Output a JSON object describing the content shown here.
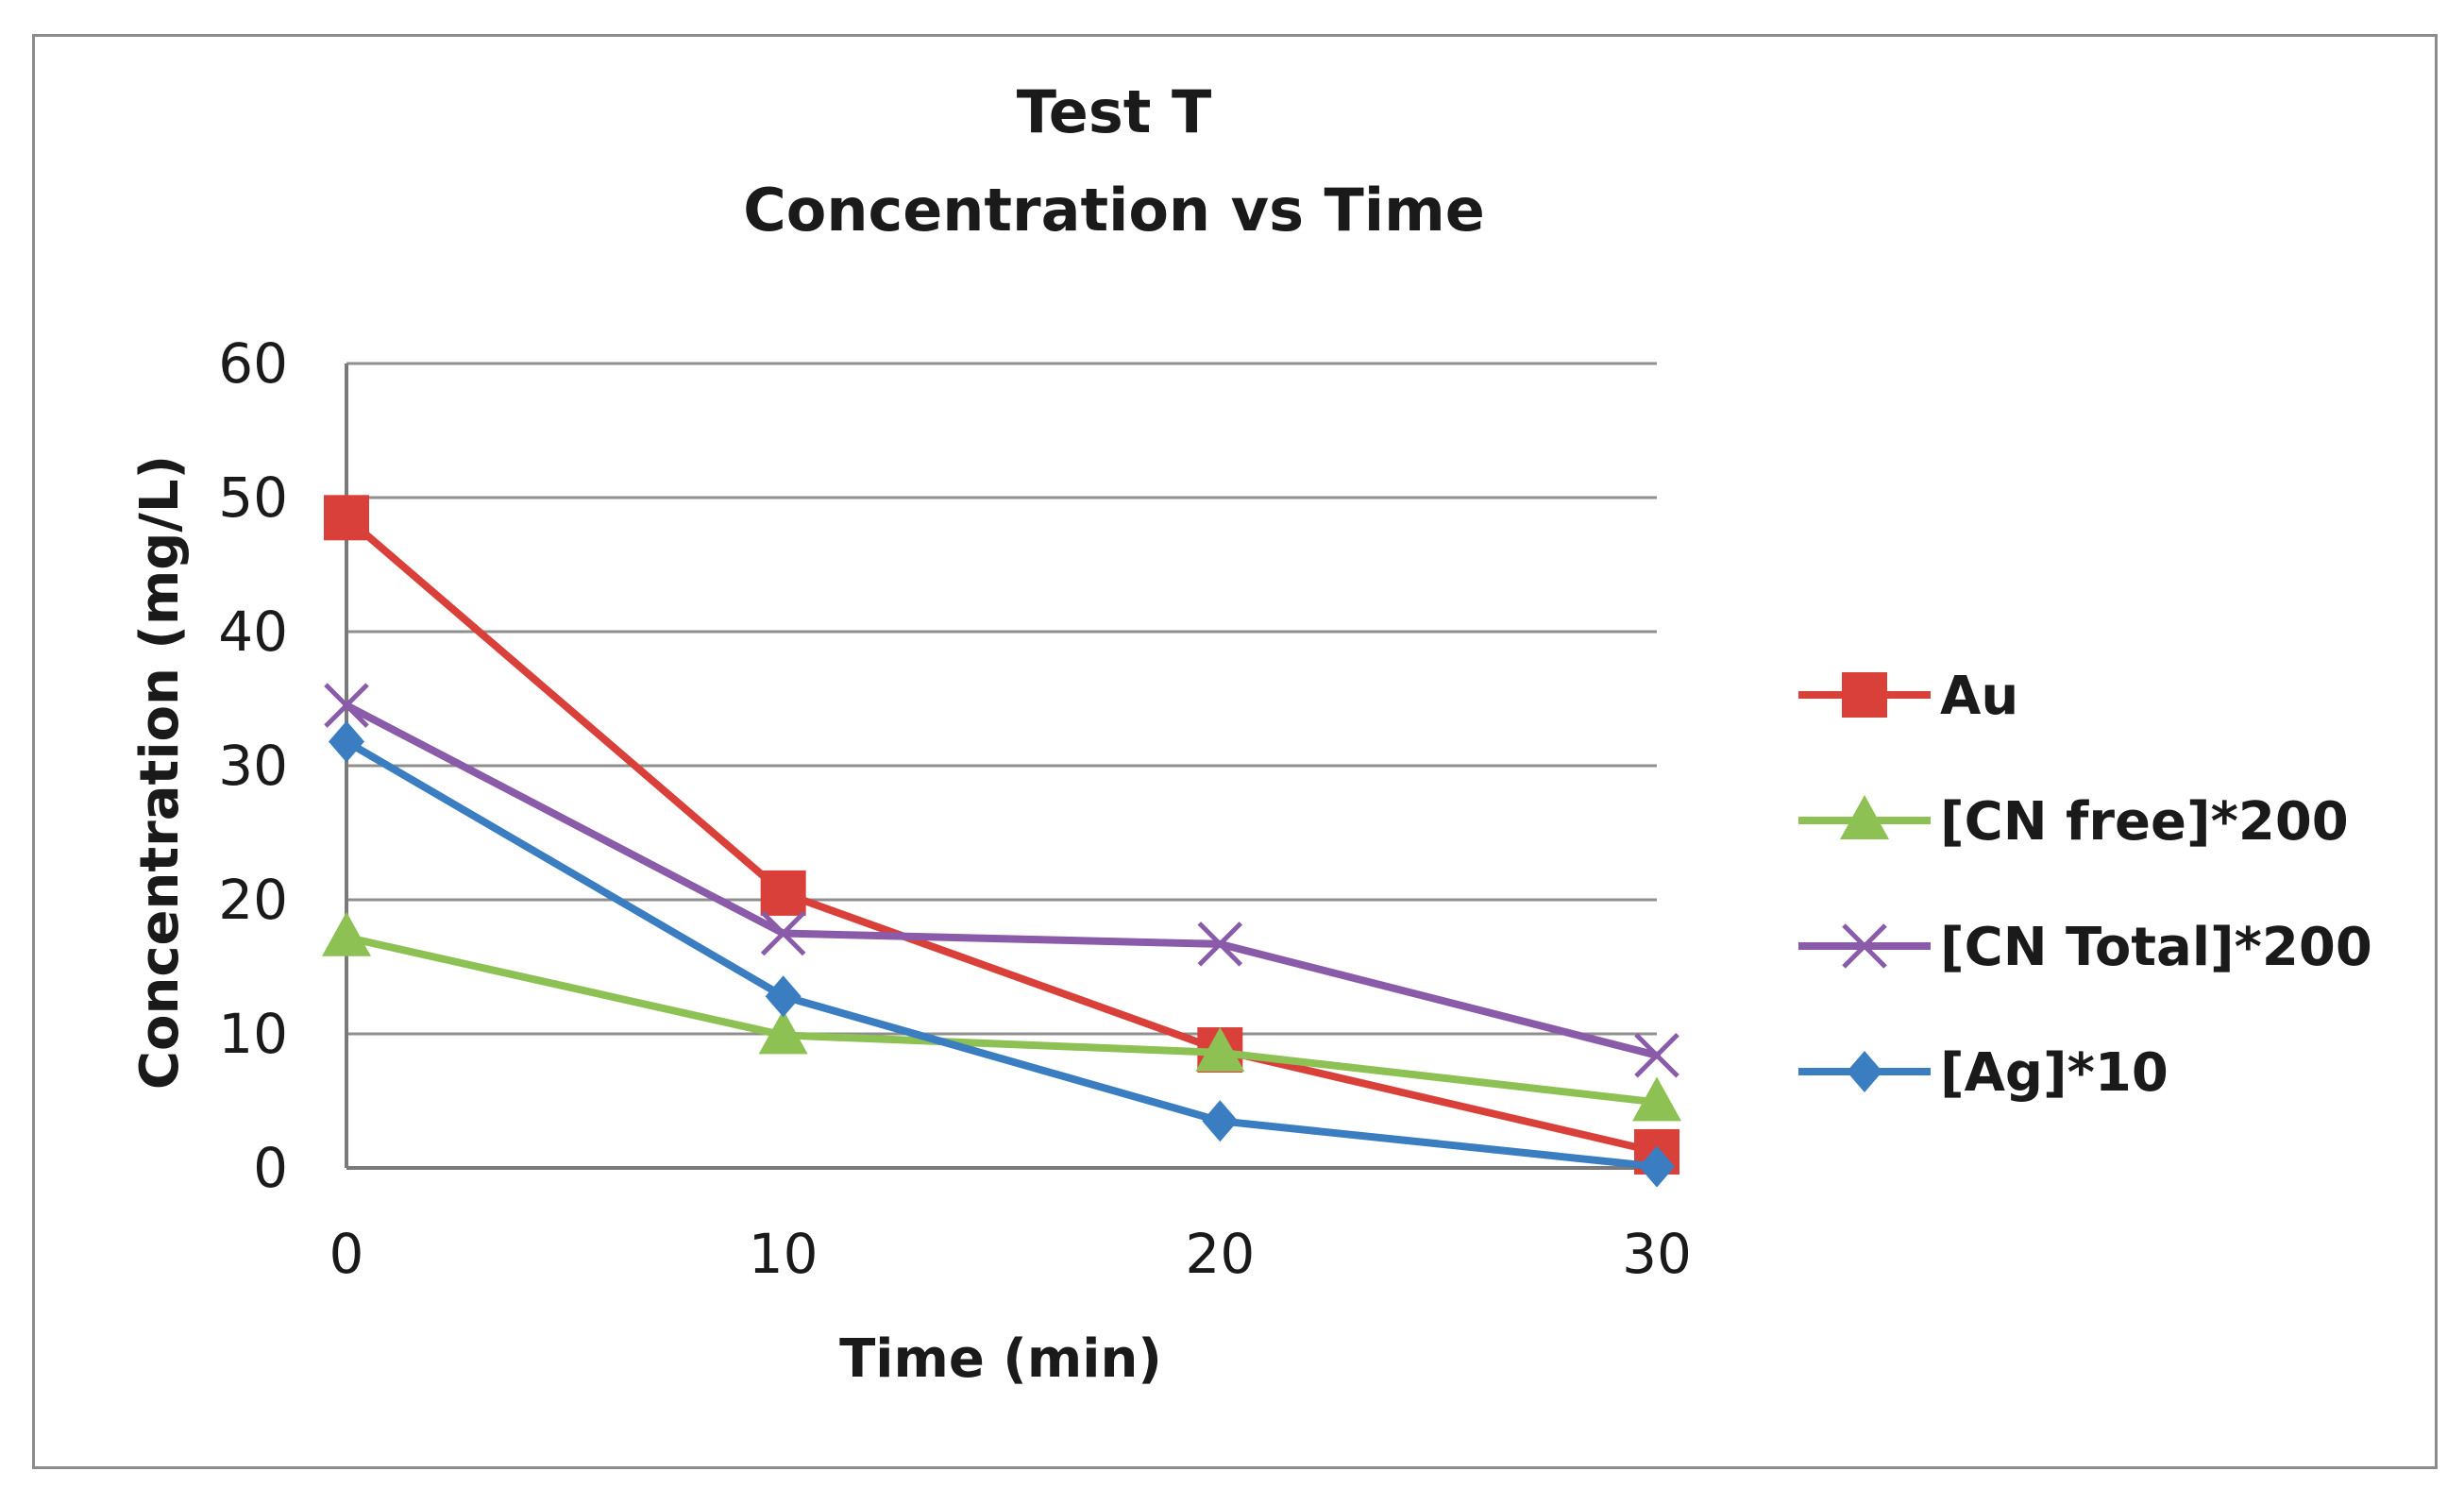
{
  "chart_data": {
    "type": "line",
    "title": [
      "Test T",
      "Concentration vs Time"
    ],
    "xlabel": "Time (min)",
    "ylabel": "Concentration (mg/L)",
    "x": [
      0,
      10,
      20,
      30
    ],
    "x_tick_labels": [
      "0",
      "10",
      "20",
      "30"
    ],
    "y_tick_labels": [
      "0",
      "10",
      "20",
      "30",
      "40",
      "50",
      "60"
    ],
    "xlim": [
      0,
      30
    ],
    "ylim": [
      0,
      60
    ],
    "y_step": 10,
    "grid": "horizontal",
    "legend_position": "right",
    "series": [
      {
        "name": "Au",
        "values": [
          48.5,
          20.5,
          8.8,
          1.2
        ],
        "color": "#d9403a",
        "marker": "square"
      },
      {
        "name": "[CN free]*200",
        "values": [
          17.2,
          9.9,
          8.6,
          4.9
        ],
        "color": "#8dc153",
        "marker": "triangle"
      },
      {
        "name": "[CN Total]*200",
        "values": [
          34.5,
          17.5,
          16.7,
          8.4
        ],
        "color": "#8a5ba8",
        "marker": "x"
      },
      {
        "name": "[Ag]*10",
        "values": [
          31.8,
          12.8,
          3.5,
          0.1
        ],
        "color": "#3a7dc1",
        "marker": "diamond"
      }
    ]
  }
}
